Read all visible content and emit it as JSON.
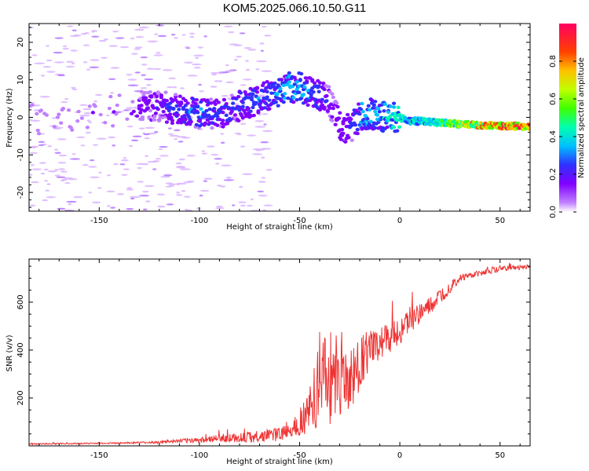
{
  "title": "KOM5.2025.066.10.50.G11",
  "chart_data": [
    {
      "type": "heatmap",
      "xlabel": "Height of straight line (km)",
      "ylabel": "Frequency (Hz)",
      "xlim": [
        -185,
        65
      ],
      "ylim": [
        -25,
        25
      ],
      "x_ticks": [
        -150,
        -100,
        -50,
        0,
        50
      ],
      "y_ticks": [
        -20,
        -10,
        0,
        10,
        20
      ],
      "colorbar": {
        "label": "Normalized spectral amplitude",
        "range": [
          0,
          1
        ],
        "ticks": [
          0.0,
          0.2,
          0.4,
          0.6,
          0.8
        ]
      },
      "ridge": {
        "x": [
          -185,
          -170,
          -150,
          -140,
          -130,
          -120,
          -110,
          -100,
          -90,
          -80,
          -70,
          -60,
          -55,
          -50,
          -45,
          -40,
          -35,
          -30,
          -25,
          -20,
          -15,
          -10,
          -5,
          0,
          5,
          10,
          20,
          30,
          40,
          50,
          60,
          65
        ],
        "y": [
          0,
          -1,
          1,
          2,
          3,
          3,
          2,
          1,
          1,
          3,
          5,
          7,
          8,
          8,
          7,
          6,
          4,
          -2,
          -3,
          0,
          1,
          0,
          0,
          0,
          -1,
          -1,
          -1.5,
          -1.8,
          -2,
          -2.2,
          -2.4,
          -2.5
        ],
        "amplitude": [
          0.05,
          0.05,
          0.08,
          0.1,
          0.12,
          0.15,
          0.2,
          0.25,
          0.2,
          0.22,
          0.25,
          0.28,
          0.3,
          0.3,
          0.28,
          0.25,
          0.15,
          0.15,
          0.2,
          0.3,
          0.3,
          0.3,
          0.35,
          0.4,
          0.35,
          0.38,
          0.45,
          0.6,
          0.7,
          0.75,
          0.8,
          0.8
        ]
      }
    },
    {
      "type": "line",
      "xlabel": "Height of straight line (km)",
      "ylabel": "SNR (v/v)",
      "xlim": [
        -185,
        65
      ],
      "ylim": [
        0,
        780
      ],
      "x_ticks": [
        -150,
        -100,
        -50,
        0,
        50
      ],
      "y_ticks": [
        200,
        400,
        600
      ],
      "series": [
        {
          "color": "#ee3333",
          "x": [
            -185,
            -160,
            -140,
            -120,
            -110,
            -100,
            -90,
            -80,
            -70,
            -60,
            -55,
            -50,
            -45,
            -40,
            -35,
            -30,
            -25,
            -20,
            -15,
            -10,
            -5,
            0,
            5,
            10,
            15,
            20,
            25,
            30,
            40,
            50,
            60,
            65
          ],
          "y": [
            8,
            10,
            12,
            15,
            20,
            25,
            30,
            35,
            40,
            50,
            70,
            100,
            150,
            250,
            300,
            300,
            250,
            350,
            400,
            430,
            450,
            480,
            520,
            550,
            580,
            620,
            660,
            700,
            720,
            740,
            745,
            750
          ],
          "noise": [
            3,
            3,
            3,
            5,
            8,
            12,
            15,
            20,
            25,
            30,
            40,
            60,
            100,
            180,
            220,
            200,
            150,
            120,
            80,
            70,
            60,
            60,
            50,
            45,
            40,
            35,
            25,
            15,
            12,
            12,
            10,
            10
          ]
        }
      ]
    }
  ]
}
